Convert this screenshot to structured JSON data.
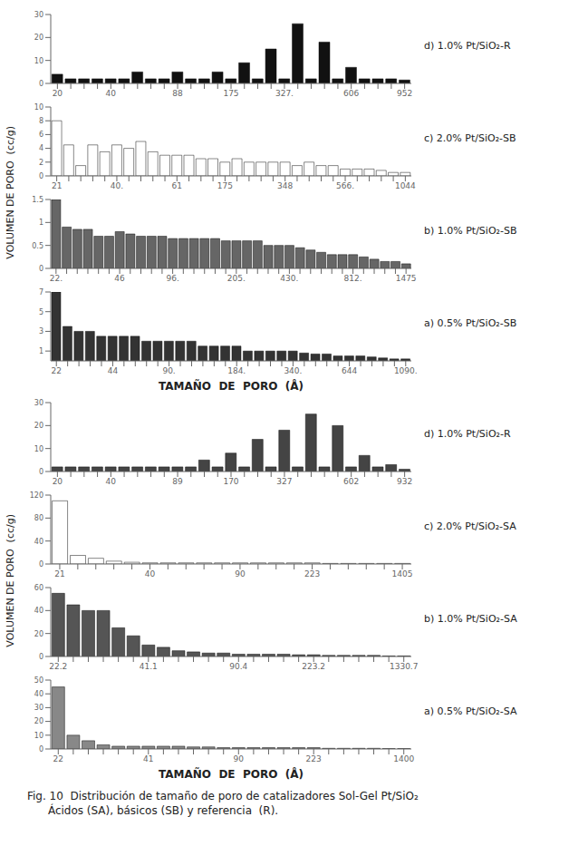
{
  "chart_data": [
    {
      "type": "bar",
      "ylabel": "VOLUMEN DE PORO  (cc/g)",
      "xlabel": "TAMAÑO  DE  PORO  (Å)",
      "panels": [
        {
          "title": "d) 1.0% Pt/SiO₂-R",
          "ylim": [
            0,
            30
          ],
          "yticks": [
            0,
            5,
            10,
            15,
            20,
            25,
            30
          ],
          "color": "#111111",
          "categories": [
            "20",
            null,
            null,
            null,
            "40",
            null,
            null,
            null,
            null,
            "88",
            null,
            null,
            null,
            "175",
            null,
            null,
            null,
            "327.",
            null,
            null,
            null,
            null,
            "606",
            null,
            null,
            null,
            "952"
          ],
          "values": [
            4,
            2,
            2,
            2,
            2,
            2,
            5,
            2,
            2,
            5,
            2,
            2,
            5,
            2,
            9,
            2,
            15,
            2,
            26,
            2,
            18,
            2,
            7,
            2,
            2,
            2,
            1.5
          ]
        },
        {
          "title": "c) 2.0% Pt/SiO₂-SB",
          "ylim": [
            0,
            10
          ],
          "yticks": [
            0,
            2,
            4,
            6,
            8,
            10
          ],
          "color": "#ffffff",
          "categories": [
            "21",
            null,
            null,
            null,
            null,
            "40.",
            null,
            null,
            null,
            null,
            "61",
            null,
            null,
            null,
            "175",
            null,
            null,
            null,
            null,
            "348",
            null,
            null,
            null,
            null,
            "566.",
            null,
            null,
            null,
            null,
            "1044"
          ],
          "values": [
            8,
            4.5,
            1.5,
            4.5,
            3.5,
            4.5,
            4,
            5,
            3.5,
            3,
            3,
            3,
            2.5,
            2.5,
            2,
            2.5,
            2,
            2,
            2,
            2,
            1.5,
            2,
            1.5,
            1.5,
            1,
            1,
            1,
            0.8,
            0.5,
            0.5
          ]
        },
        {
          "title": "b) 1.0% Pt/SiO₂-SB",
          "ylim": [
            0,
            1.5
          ],
          "yticks": [
            0,
            0.5,
            1,
            1.5
          ],
          "color": "#666666",
          "categories": [
            "22.",
            null,
            null,
            null,
            null,
            null,
            "46",
            null,
            null,
            null,
            null,
            "96.",
            null,
            null,
            null,
            null,
            null,
            "205.",
            null,
            null,
            null,
            null,
            "430.",
            null,
            null,
            null,
            null,
            null,
            "812.",
            null,
            null,
            null,
            null,
            "1475"
          ],
          "values": [
            1.5,
            0.9,
            0.85,
            0.85,
            0.7,
            0.7,
            0.8,
            0.75,
            0.7,
            0.7,
            0.7,
            0.65,
            0.65,
            0.65,
            0.65,
            0.65,
            0.6,
            0.6,
            0.6,
            0.6,
            0.5,
            0.5,
            0.5,
            0.45,
            0.4,
            0.35,
            0.3,
            0.3,
            0.3,
            0.25,
            0.2,
            0.15,
            0.15,
            0.1
          ]
        },
        {
          "title": "a) 0.5% Pt/SiO₂-SB",
          "ylim": [
            0,
            7
          ],
          "yticks": [
            0,
            1,
            2,
            3,
            4,
            5,
            6,
            7
          ],
          "color": "#333333",
          "categories": [
            "22",
            null,
            null,
            null,
            null,
            "44",
            null,
            null,
            null,
            null,
            "90.",
            null,
            null,
            null,
            null,
            null,
            "184.",
            null,
            null,
            null,
            null,
            "340.",
            null,
            null,
            null,
            null,
            "644",
            null,
            null,
            null,
            null,
            "1090."
          ],
          "values": [
            7,
            3.5,
            3,
            3,
            2.5,
            2.5,
            2.5,
            2.5,
            2,
            2,
            2,
            2,
            2,
            1.5,
            1.5,
            1.5,
            1.5,
            1,
            1,
            1,
            1,
            1,
            0.8,
            0.7,
            0.7,
            0.5,
            0.5,
            0.5,
            0.4,
            0.3,
            0.2,
            0.2
          ]
        }
      ]
    },
    {
      "type": "bar",
      "ylabel": "VOLUMEN DE PORO  (cc/g)",
      "xlabel": "TAMAÑO  DE  PORO  (Å)",
      "panels": [
        {
          "title": "d) 1.0% Pt/SiO₂-R",
          "ylim": [
            0,
            30
          ],
          "yticks": [
            0,
            5,
            10,
            15,
            20,
            25,
            30
          ],
          "color": "#444444",
          "categories": [
            "20",
            null,
            null,
            null,
            "40",
            null,
            null,
            null,
            null,
            "89",
            null,
            null,
            null,
            "170",
            null,
            null,
            null,
            "327",
            null,
            null,
            null,
            null,
            "602",
            null,
            null,
            null,
            "932"
          ],
          "values": [
            2,
            2,
            2,
            2,
            2,
            2,
            2,
            2,
            2,
            2,
            2,
            5,
            2,
            8,
            2,
            14,
            2,
            18,
            2,
            25,
            2,
            20,
            2,
            7,
            2,
            3,
            1
          ]
        },
        {
          "title": "c) 2.0% Pt/SiO₂-SA",
          "ylim": [
            0,
            120
          ],
          "yticks": [
            0,
            20,
            40,
            60,
            80,
            100,
            120
          ],
          "color": "#ffffff",
          "categories": [
            "21",
            null,
            null,
            null,
            null,
            "40",
            null,
            null,
            null,
            null,
            "90",
            null,
            null,
            null,
            "223",
            null,
            null,
            null,
            null,
            "1405"
          ],
          "values": [
            110,
            15,
            10,
            5,
            3,
            2,
            2,
            2,
            2,
            2,
            2,
            2,
            2,
            2,
            2,
            1,
            1,
            1,
            1,
            1
          ]
        },
        {
          "title": "b) 1.0% Pt/SiO₂-SA",
          "ylim": [
            0,
            60
          ],
          "yticks": [
            0,
            10,
            20,
            30,
            40,
            50,
            60
          ],
          "color": "#555555",
          "categories": [
            "22.2",
            null,
            null,
            null,
            null,
            null,
            "41.1",
            null,
            null,
            null,
            null,
            null,
            "90.4",
            null,
            null,
            null,
            null,
            "223.2",
            null,
            null,
            null,
            null,
            null,
            "1330.7"
          ],
          "values": [
            55,
            45,
            40,
            40,
            25,
            18,
            10,
            8,
            5,
            4,
            3,
            3,
            2,
            2,
            2,
            2,
            1.5,
            1.5,
            1,
            1,
            1,
            1,
            0.5,
            0.5
          ]
        },
        {
          "title": "a) 0.5% Pt/SiO₂-SA",
          "ylim": [
            0,
            50
          ],
          "yticks": [
            0,
            10,
            20,
            30,
            40,
            50
          ],
          "color": "#888888",
          "categories": [
            "22",
            null,
            null,
            null,
            null,
            null,
            "41",
            null,
            null,
            null,
            null,
            null,
            "90",
            null,
            null,
            null,
            null,
            "223",
            null,
            null,
            null,
            null,
            null,
            "1400"
          ],
          "values": [
            45,
            10,
            6,
            3,
            2,
            2,
            2,
            2,
            2,
            1.5,
            1.5,
            1,
            1,
            1,
            1,
            1,
            1,
            1,
            0.5,
            0.5,
            0.5,
            0.5,
            0.3,
            0.3
          ]
        }
      ]
    }
  ],
  "caption": [
    "Fig. 10  Distribución de tamaño de poro de catalizadores Sol-Gel Pt/SiO₂",
    "      Ácidos (SA), básicos (SB) y referencia  (R)."
  ]
}
